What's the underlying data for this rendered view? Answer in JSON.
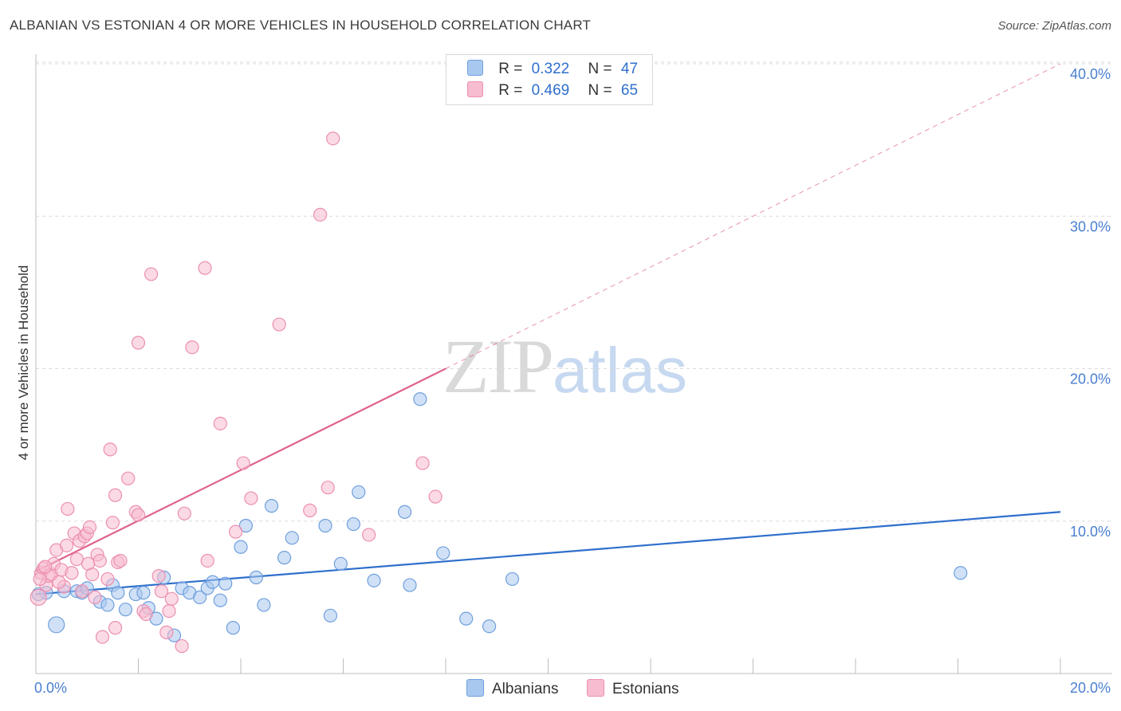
{
  "title": "ALBANIAN VS ESTONIAN 4 OR MORE VEHICLES IN HOUSEHOLD CORRELATION CHART",
  "source": "Source: ZipAtlas.com",
  "watermark": {
    "zip": "ZIP",
    "atlas": "atlas"
  },
  "legend": {
    "rows": [
      {
        "r_label": "R =",
        "r_value": "0.322",
        "n_label": "N =",
        "n_value": "47"
      },
      {
        "r_label": "R =",
        "r_value": "0.469",
        "n_label": "N =",
        "n_value": "65"
      }
    ]
  },
  "bottom_legend": {
    "albanians": "Albanians",
    "estonians": "Estonians"
  },
  "colors": {
    "albanian_fill": "#a9c8f0",
    "albanian_stroke": "#6f9fdc",
    "albanian_line": "#2f6fcc",
    "estonian_fill": "#f7bcd0",
    "estonian_stroke": "#ec8fb0",
    "estonian_line": "#e0628e",
    "grid": "#dcdcdc",
    "tick_text": "#4a7fd0"
  },
  "chart_data": {
    "type": "scatter",
    "title": "ALBANIAN VS ESTONIAN 4 OR MORE VEHICLES IN HOUSEHOLD CORRELATION CHART",
    "xlabel": "",
    "ylabel": "4 or more Vehicles in Household",
    "xlim": [
      0,
      20
    ],
    "ylim": [
      0,
      40
    ],
    "x_tick_labels": [
      "0.0%",
      "20.0%"
    ],
    "y_ticks": [
      10,
      20,
      30,
      40
    ],
    "y_tick_labels": [
      "10.0%",
      "20.0%",
      "30.0%",
      "40.0%"
    ],
    "grid": true,
    "legend_position": "top-center",
    "series": [
      {
        "name": "Albanians",
        "r": 0.322,
        "n": 47,
        "trend": {
          "x": [
            0,
            20
          ],
          "y": [
            5.2,
            10.6
          ],
          "style": "solid"
        },
        "points": [
          [
            0.2,
            5.3
          ],
          [
            0.55,
            5.4
          ],
          [
            0.8,
            5.4
          ],
          [
            0.9,
            5.3
          ],
          [
            1.0,
            5.6
          ],
          [
            1.25,
            4.7
          ],
          [
            1.4,
            4.5
          ],
          [
            1.5,
            5.8
          ],
          [
            1.6,
            5.3
          ],
          [
            1.75,
            4.2
          ],
          [
            1.95,
            5.2
          ],
          [
            2.1,
            5.3
          ],
          [
            2.2,
            4.3
          ],
          [
            2.35,
            3.6
          ],
          [
            2.5,
            6.3
          ],
          [
            2.7,
            2.5
          ],
          [
            2.85,
            5.6
          ],
          [
            3.0,
            5.3
          ],
          [
            3.2,
            5.0
          ],
          [
            3.35,
            5.6
          ],
          [
            3.45,
            6.0
          ],
          [
            3.6,
            4.8
          ],
          [
            3.7,
            5.9
          ],
          [
            3.85,
            3.0
          ],
          [
            4.0,
            8.3
          ],
          [
            4.1,
            9.7
          ],
          [
            4.3,
            6.3
          ],
          [
            4.45,
            4.5
          ],
          [
            4.6,
            11.0
          ],
          [
            4.85,
            7.6
          ],
          [
            5.0,
            8.9
          ],
          [
            5.65,
            9.7
          ],
          [
            5.75,
            3.8
          ],
          [
            5.95,
            7.2
          ],
          [
            6.2,
            9.8
          ],
          [
            6.3,
            11.9
          ],
          [
            6.6,
            6.1
          ],
          [
            7.2,
            10.6
          ],
          [
            7.3,
            5.8
          ],
          [
            7.5,
            18.0
          ],
          [
            7.95,
            7.9
          ],
          [
            8.4,
            3.6
          ],
          [
            8.85,
            3.1
          ],
          [
            9.3,
            6.2
          ],
          [
            18.05,
            6.6
          ],
          [
            0.4,
            3.2
          ],
          [
            0.05,
            5.2
          ]
        ]
      },
      {
        "name": "Estonians",
        "r": 0.469,
        "n": 65,
        "trend": {
          "x": [
            0,
            8
          ],
          "y": [
            6.7,
            20.0
          ],
          "style": "solid",
          "extension_x": [
            8,
            20
          ],
          "extension_y": [
            20.0,
            40.0
          ],
          "extension_style": "dashed"
        },
        "points": [
          [
            0.05,
            5.0
          ],
          [
            0.1,
            6.6
          ],
          [
            0.15,
            6.9
          ],
          [
            0.2,
            5.8
          ],
          [
            0.25,
            6.4
          ],
          [
            0.3,
            6.5
          ],
          [
            0.35,
            7.2
          ],
          [
            0.4,
            8.1
          ],
          [
            0.5,
            6.8
          ],
          [
            0.55,
            5.7
          ],
          [
            0.6,
            8.4
          ],
          [
            0.62,
            10.8
          ],
          [
            0.7,
            6.6
          ],
          [
            0.75,
            9.2
          ],
          [
            0.8,
            7.5
          ],
          [
            0.85,
            8.7
          ],
          [
            0.9,
            5.4
          ],
          [
            0.95,
            9.0
          ],
          [
            1.0,
            9.2
          ],
          [
            1.02,
            7.2
          ],
          [
            1.05,
            9.6
          ],
          [
            1.1,
            6.5
          ],
          [
            1.2,
            7.8
          ],
          [
            1.25,
            7.4
          ],
          [
            1.3,
            2.4
          ],
          [
            1.4,
            6.2
          ],
          [
            1.45,
            14.7
          ],
          [
            1.5,
            9.9
          ],
          [
            1.55,
            3.0
          ],
          [
            1.55,
            11.7
          ],
          [
            1.6,
            7.3
          ],
          [
            1.65,
            7.4
          ],
          [
            1.8,
            12.8
          ],
          [
            1.95,
            10.6
          ],
          [
            2.0,
            10.4
          ],
          [
            2.0,
            21.7
          ],
          [
            2.1,
            4.1
          ],
          [
            2.15,
            3.9
          ],
          [
            2.25,
            26.2
          ],
          [
            2.4,
            6.4
          ],
          [
            2.45,
            5.4
          ],
          [
            2.55,
            2.7
          ],
          [
            2.6,
            4.1
          ],
          [
            2.65,
            4.9
          ],
          [
            2.85,
            1.8
          ],
          [
            2.9,
            10.5
          ],
          [
            3.05,
            21.4
          ],
          [
            3.3,
            26.6
          ],
          [
            3.35,
            7.4
          ],
          [
            3.6,
            16.4
          ],
          [
            3.9,
            9.3
          ],
          [
            4.05,
            13.8
          ],
          [
            4.2,
            11.5
          ],
          [
            4.75,
            22.9
          ],
          [
            5.35,
            10.7
          ],
          [
            5.55,
            30.1
          ],
          [
            5.7,
            12.2
          ],
          [
            5.8,
            35.1
          ],
          [
            6.5,
            9.1
          ],
          [
            7.55,
            13.8
          ],
          [
            7.8,
            11.6
          ],
          [
            0.08,
            6.2
          ],
          [
            0.18,
            7.0
          ],
          [
            0.45,
            6.0
          ],
          [
            1.15,
            5.0
          ]
        ]
      }
    ]
  }
}
